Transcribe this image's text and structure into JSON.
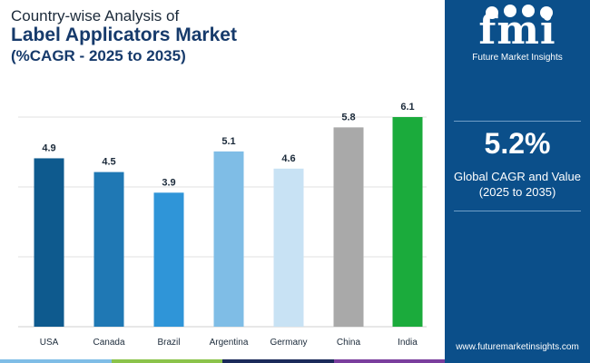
{
  "header": {
    "line1": "Country-wise Analysis of",
    "line2": "Label Applicators Market",
    "line3": "(%CAGR - 2025 to 2035)"
  },
  "sidebar": {
    "logo_text": "fmi",
    "logo_subtitle": "Future Market Insights",
    "headline_value": "5.2%",
    "headline_label_1": "Global CAGR and Value",
    "headline_label_2": "(2025 to 2035)",
    "url": "www.futuremarketinsights.com"
  },
  "colors": {
    "sidebar_bg": "#0b4f8a",
    "title_blue": "#163a6b",
    "bars": [
      "#0e5a8e",
      "#1f78b4",
      "#2f95d8",
      "#7fbde6",
      "#c8e2f4",
      "#a9a9a9",
      "#1bab3c"
    ],
    "strip": [
      "#7fbde6",
      "#8bc34a",
      "#1b2a5a",
      "#7a3e9d",
      "#0b4f8a"
    ]
  },
  "chart_data": {
    "type": "bar",
    "title": "Label Applicators Market",
    "categories": [
      "USA",
      "Canada",
      "Brazil",
      "Argentina",
      "Germany",
      "China",
      "India"
    ],
    "values": [
      4.9,
      4.5,
      3.9,
      5.1,
      4.6,
      5.8,
      6.1
    ],
    "value_labels": [
      "4.9",
      "4.5",
      "3.9",
      "5.1",
      "4.6",
      "5.8",
      "6.1"
    ],
    "ylim": [
      0,
      6.1
    ],
    "grid": true,
    "xlabel": "",
    "ylabel": ""
  }
}
